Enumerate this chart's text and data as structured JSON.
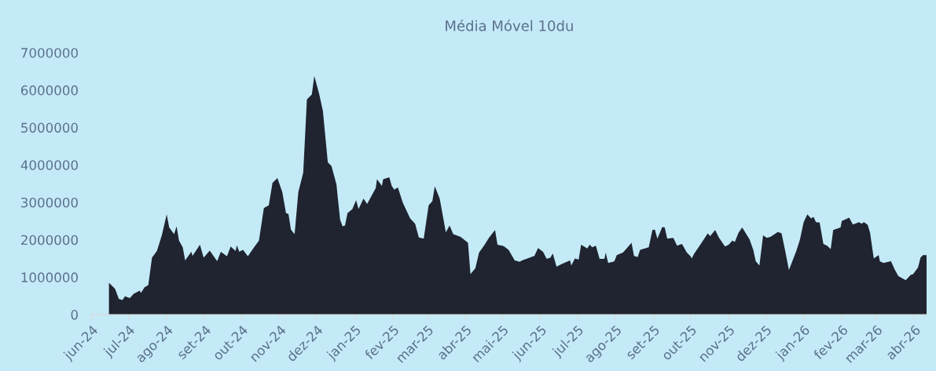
{
  "chart_data": {
    "type": "area",
    "title": "Média Móvel 10du",
    "x": [
      "2024-06-15",
      "2024-06-20",
      "2024-06-23",
      "2024-06-26",
      "2024-06-28",
      "2024-07-02",
      "2024-07-05",
      "2024-07-10",
      "2024-07-11",
      "2024-07-14",
      "2024-07-17",
      "2024-07-20",
      "2024-07-24",
      "2024-07-28",
      "2024-08-01",
      "2024-08-03",
      "2024-08-07",
      "2024-08-09",
      "2024-08-11",
      "2024-08-14",
      "2024-08-16",
      "2024-08-21",
      "2024-08-22",
      "2024-08-28",
      "2024-08-31",
      "2024-09-05",
      "2024-09-11",
      "2024-09-14",
      "2024-09-19",
      "2024-09-22",
      "2024-09-26",
      "2024-09-27",
      "2024-09-29",
      "2024-10-02",
      "2024-10-06",
      "2024-10-10",
      "2024-10-15",
      "2024-10-19",
      "2024-10-23",
      "2024-10-26",
      "2024-10-30",
      "2024-11-03",
      "2024-11-06",
      "2024-11-08",
      "2024-11-10",
      "2024-11-13",
      "2024-11-16",
      "2024-11-20",
      "2024-11-23",
      "2024-11-27",
      "2024-11-29",
      "2024-12-03",
      "2024-12-06",
      "2024-12-10",
      "2024-12-13",
      "2024-12-17",
      "2024-12-20",
      "2024-12-22",
      "2024-12-24",
      "2024-12-26",
      "2024-12-30",
      "2025-01-02",
      "2025-01-04",
      "2025-01-08",
      "2025-01-11",
      "2025-01-18",
      "2025-01-19",
      "2025-01-23",
      "2025-01-24",
      "2025-01-29",
      "2025-01-31",
      "2025-02-02",
      "2025-02-05",
      "2025-02-09",
      "2025-02-15",
      "2025-02-19",
      "2025-02-22",
      "2025-02-26",
      "2025-03-02",
      "2025-03-05",
      "2025-03-07",
      "2025-03-11",
      "2025-03-16",
      "2025-03-19",
      "2025-03-22",
      "2025-03-28",
      "2025-04-03",
      "2025-04-05",
      "2025-04-09",
      "2025-04-12",
      "2025-04-16",
      "2025-04-20",
      "2025-04-25",
      "2025-04-27",
      "2025-05-02",
      "2025-05-06",
      "2025-05-11",
      "2025-05-15",
      "2025-05-17",
      "2025-05-27",
      "2025-05-30",
      "2025-06-03",
      "2025-06-06",
      "2025-06-09",
      "2025-06-11",
      "2025-06-14",
      "2025-06-18",
      "2025-06-25",
      "2025-06-26",
      "2025-06-29",
      "2025-07-02",
      "2025-07-04",
      "2025-07-09",
      "2025-07-11",
      "2025-07-13",
      "2025-07-16",
      "2025-07-19",
      "2025-07-23",
      "2025-07-24",
      "2025-07-26",
      "2025-07-31",
      "2025-08-02",
      "2025-08-07",
      "2025-08-10",
      "2025-08-14",
      "2025-08-16",
      "2025-08-19",
      "2025-08-21",
      "2025-08-28",
      "2025-08-31",
      "2025-09-02",
      "2025-09-04",
      "2025-09-08",
      "2025-09-10",
      "2025-09-12",
      "2025-09-17",
      "2025-09-20",
      "2025-09-24",
      "2025-09-28",
      "2025-10-01",
      "2025-10-02",
      "2025-10-04",
      "2025-10-10",
      "2025-10-15",
      "2025-10-17",
      "2025-10-21",
      "2025-10-24",
      "2025-10-29",
      "2025-11-01",
      "2025-11-04",
      "2025-11-06",
      "2025-11-09",
      "2025-11-12",
      "2025-11-18",
      "2025-11-21",
      "2025-11-23",
      "2025-11-26",
      "2025-11-29",
      "2025-12-02",
      "2025-12-05",
      "2025-12-11",
      "2025-12-14",
      "2025-12-17",
      "2025-12-20",
      "2025-12-26",
      "2025-12-29",
      "2026-01-01",
      "2026-01-04",
      "2026-01-07",
      "2026-01-09",
      "2026-01-11",
      "2026-01-14",
      "2026-01-17",
      "2026-01-20",
      "2026-01-23",
      "2026-01-25",
      "2026-01-31",
      "2026-02-01",
      "2026-02-07",
      "2026-02-10",
      "2026-02-15",
      "2026-02-17",
      "2026-02-19",
      "2026-02-22",
      "2026-02-24",
      "2026-02-27",
      "2026-03-03",
      "2026-03-04",
      "2026-03-07",
      "2026-03-13",
      "2026-03-16",
      "2026-03-19",
      "2026-03-25",
      "2026-03-29",
      "2026-03-31",
      "2026-04-04",
      "2026-04-06",
      "2026-04-08",
      "2026-04-11"
    ],
    "series": [
      {
        "color": "#1f2430",
        "values": [
          850000,
          690000,
          420000,
          390000,
          490000,
          440000,
          550000,
          640000,
          580000,
          730000,
          790000,
          1520000,
          1700000,
          2120000,
          2680000,
          2330000,
          2150000,
          2360000,
          1980000,
          1800000,
          1450000,
          1680000,
          1570000,
          1870000,
          1520000,
          1710000,
          1430000,
          1680000,
          1560000,
          1820000,
          1700000,
          1850000,
          1680000,
          1730000,
          1560000,
          1750000,
          1980000,
          2850000,
          2920000,
          3520000,
          3650000,
          3270000,
          2710000,
          2690000,
          2270000,
          2150000,
          3270000,
          3790000,
          5750000,
          5880000,
          6380000,
          5890000,
          5440000,
          4070000,
          3970000,
          3480000,
          2540000,
          2360000,
          2380000,
          2710000,
          2820000,
          3060000,
          2820000,
          3100000,
          2960000,
          3380000,
          3620000,
          3440000,
          3620000,
          3670000,
          3440000,
          3340000,
          3400000,
          2990000,
          2570000,
          2430000,
          2060000,
          2030000,
          2920000,
          3030000,
          3430000,
          3100000,
          2200000,
          2380000,
          2150000,
          2080000,
          1920000,
          1080000,
          1240000,
          1660000,
          1840000,
          2050000,
          2260000,
          1870000,
          1830000,
          1730000,
          1450000,
          1410000,
          1450000,
          1570000,
          1780000,
          1680000,
          1490000,
          1520000,
          1630000,
          1280000,
          1350000,
          1450000,
          1310000,
          1500000,
          1470000,
          1870000,
          1770000,
          1870000,
          1800000,
          1840000,
          1490000,
          1490000,
          1660000,
          1380000,
          1420000,
          1590000,
          1660000,
          1770000,
          1920000,
          1570000,
          1540000,
          1730000,
          1800000,
          2260000,
          2270000,
          2030000,
          2340000,
          2330000,
          2030000,
          2050000,
          1840000,
          1890000,
          1660000,
          1560000,
          1500000,
          1630000,
          1920000,
          2170000,
          2100000,
          2260000,
          2060000,
          1820000,
          1870000,
          1980000,
          1940000,
          2190000,
          2330000,
          2010000,
          1730000,
          1430000,
          1310000,
          2120000,
          2050000,
          2080000,
          2210000,
          2170000,
          1700000,
          1190000,
          1700000,
          2010000,
          2470000,
          2680000,
          2570000,
          2610000,
          2470000,
          2460000,
          1890000,
          1840000,
          1750000,
          2260000,
          2330000,
          2500000,
          2590000,
          2410000,
          2470000,
          2430000,
          2470000,
          2400000,
          2190000,
          1500000,
          1590000,
          1420000,
          1380000,
          1430000,
          1210000,
          1030000,
          920000,
          1060000,
          1080000,
          1260000,
          1520000,
          1590000,
          1590000
        ]
      }
    ],
    "xlim": [
      "2024-06-01",
      "2026-04-11"
    ],
    "xticks": [
      {
        "value": "2024-06-01",
        "label": "jun-24"
      },
      {
        "value": "2024-07-01",
        "label": "jul-24"
      },
      {
        "value": "2024-08-01",
        "label": "ago-24"
      },
      {
        "value": "2024-09-01",
        "label": "set-24"
      },
      {
        "value": "2024-10-01",
        "label": "out-24"
      },
      {
        "value": "2024-11-01",
        "label": "nov-24"
      },
      {
        "value": "2024-12-01",
        "label": "dez-24"
      },
      {
        "value": "2025-01-01",
        "label": "jan-25"
      },
      {
        "value": "2025-02-01",
        "label": "fev-25"
      },
      {
        "value": "2025-03-01",
        "label": "mar-25"
      },
      {
        "value": "2025-04-01",
        "label": "abr-25"
      },
      {
        "value": "2025-05-01",
        "label": "mai-25"
      },
      {
        "value": "2025-06-01",
        "label": "jun-25"
      },
      {
        "value": "2025-07-01",
        "label": "jul-25"
      },
      {
        "value": "2025-08-01",
        "label": "ago-25"
      },
      {
        "value": "2025-09-01",
        "label": "set-25"
      },
      {
        "value": "2025-10-01",
        "label": "out-25"
      },
      {
        "value": "2025-11-01",
        "label": "nov-25"
      },
      {
        "value": "2025-12-01",
        "label": "dez-25"
      },
      {
        "value": "2026-01-01",
        "label": "jan-26"
      },
      {
        "value": "2026-02-01",
        "label": "fev-26"
      },
      {
        "value": "2026-03-01",
        "label": "mar-26"
      },
      {
        "value": "2026-04-01",
        "label": "abr-26"
      }
    ],
    "ylim": [
      0,
      7000000
    ],
    "yticks": [
      0,
      1000000,
      2000000,
      3000000,
      4000000,
      5000000,
      6000000,
      7000000
    ],
    "grid": false
  }
}
